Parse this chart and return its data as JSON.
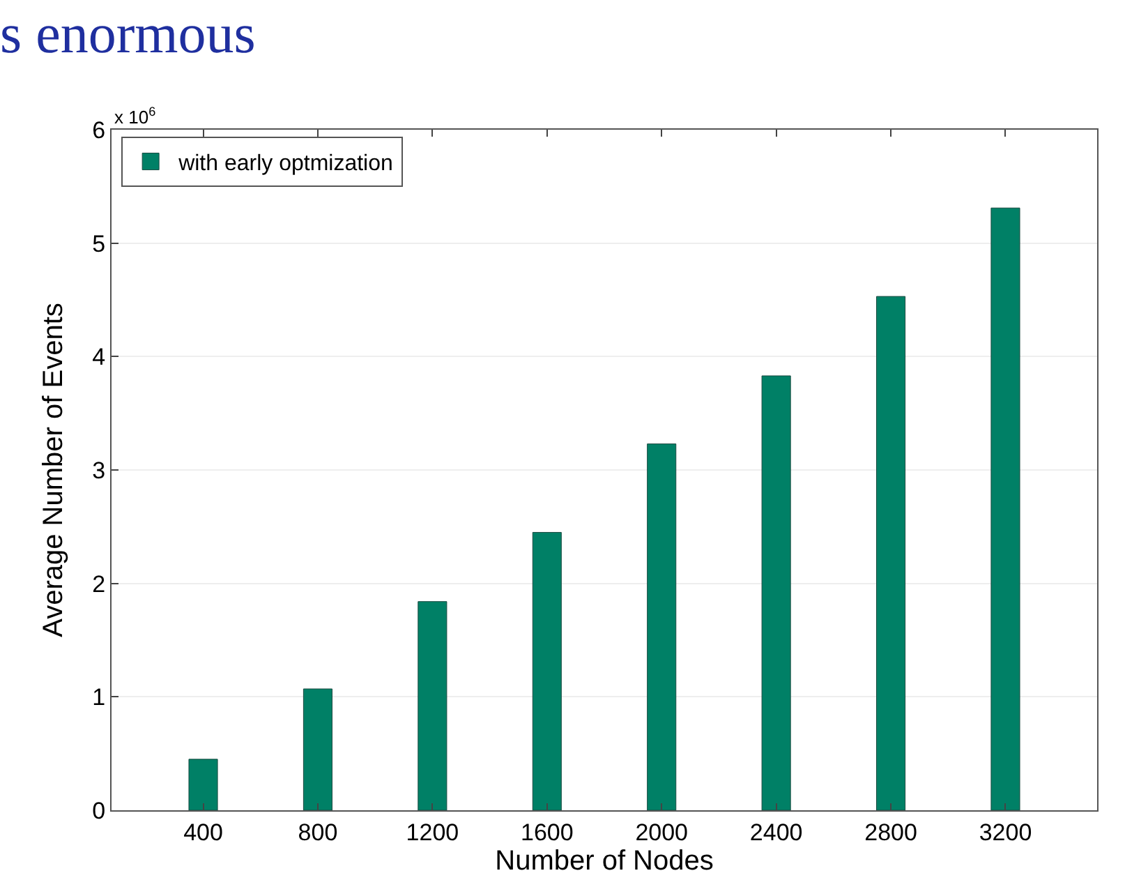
{
  "chart_data": {
    "type": "bar",
    "title": "s enormous",
    "categories": [
      "400",
      "800",
      "1200",
      "1600",
      "2000",
      "2400",
      "2800",
      "3200"
    ],
    "series": [
      {
        "name": "with early optmization",
        "color": "#008066",
        "values": [
          0.45,
          1.07,
          1.84,
          2.45,
          3.23,
          3.83,
          4.53,
          5.31
        ]
      }
    ],
    "xlabel": "Number of Nodes",
    "ylabel": "Average Number of Events",
    "annotations": [
      "x 10$^{6}$"
    ],
    "ylim": [
      0,
      6
    ],
    "yticks": [
      0,
      1,
      2,
      3,
      4,
      5,
      6
    ],
    "grid": "y",
    "legend": "top left"
  }
}
